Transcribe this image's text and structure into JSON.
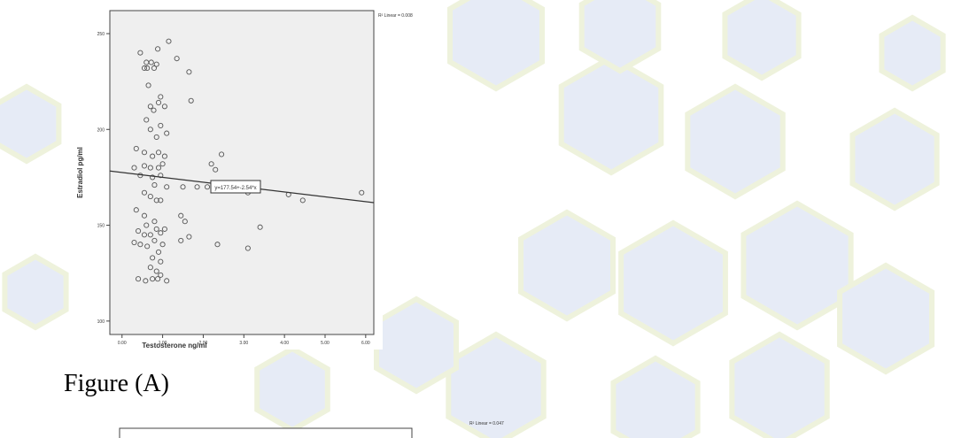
{
  "page": {
    "caption_a": "Figure (A)"
  },
  "colors": {
    "hex_blue": "#e6ebf6",
    "hex_green": "#eef2dc",
    "plot_bg": "#efefef",
    "fit_line": "#333333",
    "point": "#555555"
  },
  "chart_data": [
    {
      "type": "scatter",
      "title": "",
      "xlabel": "Testosterone  ng/ml",
      "ylabel": "Estradiol  pg/ml",
      "xticks": [
        "0.00",
        "1.00",
        "2.00",
        "3.00",
        "4.00",
        "5.00",
        "6.00"
      ],
      "yticks": [
        "100",
        "150",
        "200",
        "250"
      ],
      "xlim": [
        -0.3,
        6.2
      ],
      "ylim": [
        93,
        262
      ],
      "r2_label": "R² Linear = 0.008",
      "fit_label": "y=177.54+-2.54*x",
      "fit_line": {
        "intercept": 177.54,
        "slope": -2.54
      },
      "points": [
        [
          0.45,
          240
        ],
        [
          0.88,
          242
        ],
        [
          0.6,
          235
        ],
        [
          0.72,
          235
        ],
        [
          0.85,
          234
        ],
        [
          0.55,
          232
        ],
        [
          0.62,
          232
        ],
        [
          0.79,
          232
        ],
        [
          1.35,
          237
        ],
        [
          1.65,
          230
        ],
        [
          1.15,
          246
        ],
        [
          0.65,
          223
        ],
        [
          0.95,
          217
        ],
        [
          0.9,
          214
        ],
        [
          1.05,
          212
        ],
        [
          0.7,
          212
        ],
        [
          0.78,
          210
        ],
        [
          1.7,
          215
        ],
        [
          0.6,
          205
        ],
        [
          0.7,
          200
        ],
        [
          0.95,
          202
        ],
        [
          0.85,
          196
        ],
        [
          1.1,
          198
        ],
        [
          0.35,
          190
        ],
        [
          0.55,
          188
        ],
        [
          0.9,
          188
        ],
        [
          0.75,
          186
        ],
        [
          1.05,
          186
        ],
        [
          2.45,
          187
        ],
        [
          0.3,
          180
        ],
        [
          0.55,
          181
        ],
        [
          0.7,
          180
        ],
        [
          0.9,
          180
        ],
        [
          1.0,
          182
        ],
        [
          2.2,
          182
        ],
        [
          0.45,
          176
        ],
        [
          0.75,
          175
        ],
        [
          0.95,
          176
        ],
        [
          2.3,
          179
        ],
        [
          0.8,
          171
        ],
        [
          1.1,
          170
        ],
        [
          1.5,
          170
        ],
        [
          1.85,
          170
        ],
        [
          2.1,
          170
        ],
        [
          0.55,
          167
        ],
        [
          0.7,
          165
        ],
        [
          0.85,
          163
        ],
        [
          0.95,
          163
        ],
        [
          3.1,
          167
        ],
        [
          4.1,
          166
        ],
        [
          4.45,
          163
        ],
        [
          5.9,
          167
        ],
        [
          0.35,
          158
        ],
        [
          0.55,
          155
        ],
        [
          0.6,
          150
        ],
        [
          0.8,
          152
        ],
        [
          1.45,
          155
        ],
        [
          1.55,
          152
        ],
        [
          0.4,
          147
        ],
        [
          0.55,
          145
        ],
        [
          0.7,
          145
        ],
        [
          0.85,
          148
        ],
        [
          0.95,
          146
        ],
        [
          1.05,
          148
        ],
        [
          3.4,
          149
        ],
        [
          0.3,
          141
        ],
        [
          0.45,
          140
        ],
        [
          0.62,
          139
        ],
        [
          0.8,
          142
        ],
        [
          1.0,
          140
        ],
        [
          1.45,
          142
        ],
        [
          1.65,
          144
        ],
        [
          2.35,
          140
        ],
        [
          3.1,
          138
        ],
        [
          0.9,
          136
        ],
        [
          0.75,
          133
        ],
        [
          0.95,
          131
        ],
        [
          0.7,
          128
        ],
        [
          0.85,
          126
        ],
        [
          0.95,
          124
        ],
        [
          0.4,
          122
        ],
        [
          0.58,
          121
        ],
        [
          0.75,
          122
        ],
        [
          0.88,
          122
        ],
        [
          1.1,
          121
        ]
      ]
    },
    {
      "type": "scatter",
      "r2_label": "R² Linear = 0.047",
      "partial": true
    }
  ]
}
